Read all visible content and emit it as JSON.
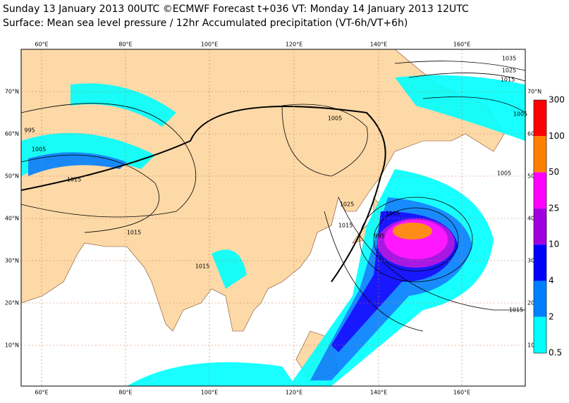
{
  "header": {
    "line1": "Sunday 13 January 2013 00UTC ©ECMWF Forecast t+036 VT: Monday 14 January 2013 12UTC",
    "line2": "Surface: Mean sea level pressure / 12hr Accumulated precipitation (VT-6h/VT+6h)"
  },
  "longitudes": [
    "60°E",
    "80°E",
    "100°E",
    "120°E",
    "140°E",
    "160°E"
  ],
  "latitudes": [
    "70°N",
    "60°N",
    "50°N",
    "40°N",
    "30°N",
    "20°N",
    "10°N"
  ],
  "contour_labels": [
    "1035",
    "1025",
    "1015",
    "1005",
    "995",
    "1005",
    "1015",
    "1005",
    "1025",
    "1015",
    "1005",
    "1015",
    "1015",
    "1015",
    "995",
    "1005"
  ],
  "legend": {
    "labels": [
      "300",
      "100",
      "50",
      "25",
      "10",
      "4",
      "2",
      "0.5"
    ],
    "colors": [
      "#ff0000",
      "#ff8000",
      "#ff00ff",
      "#a000e0",
      "#0000ff",
      "#0080ff",
      "#00ffff"
    ]
  }
}
